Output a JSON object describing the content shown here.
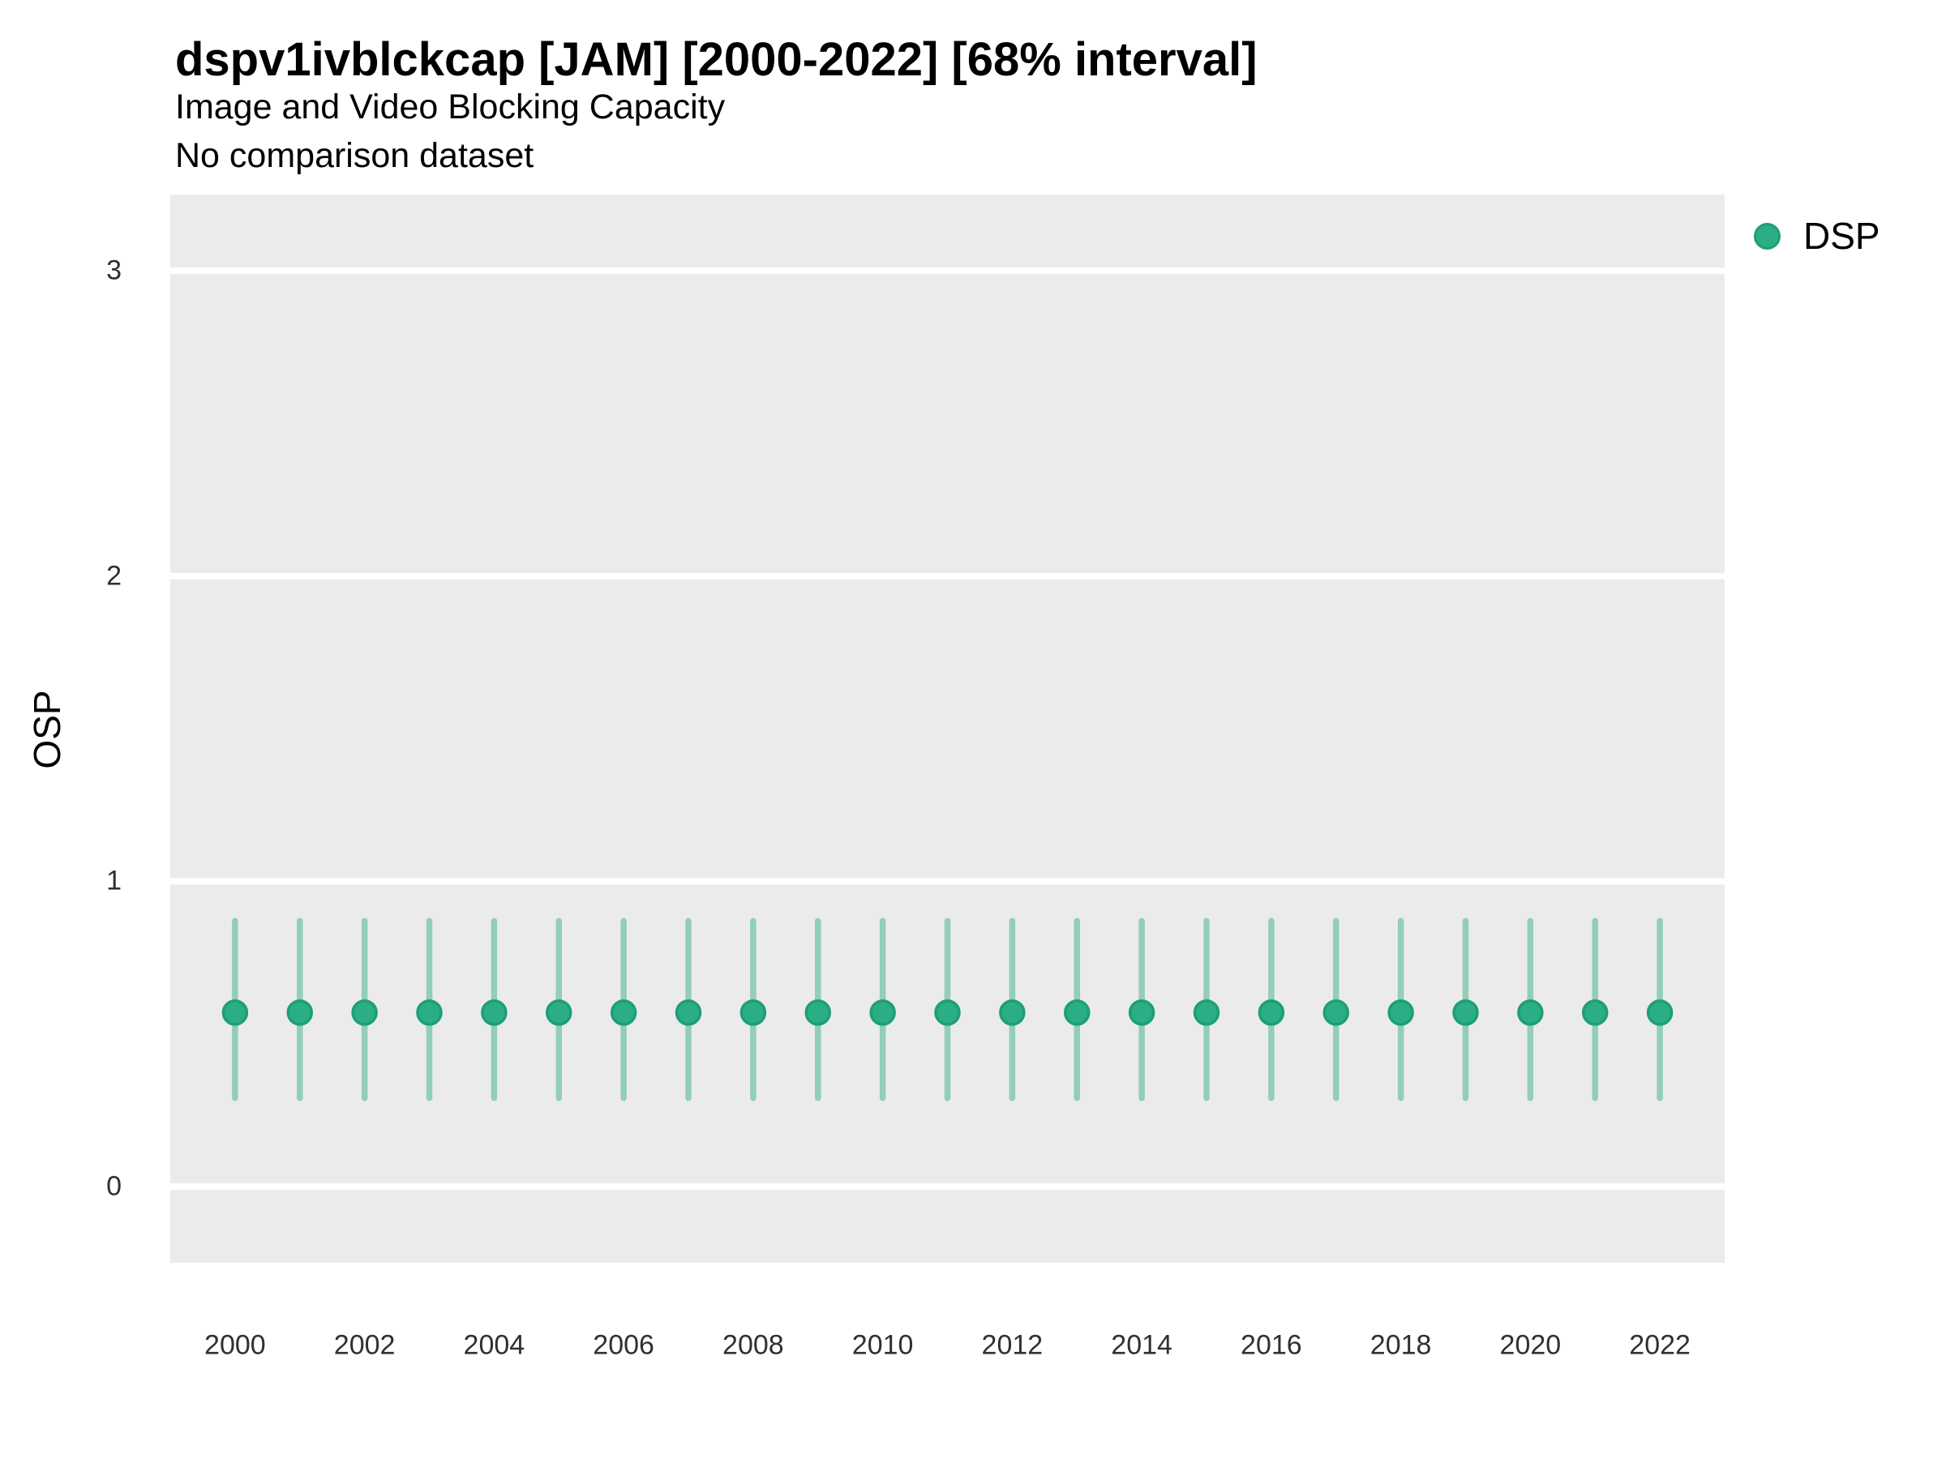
{
  "chart_data": {
    "type": "scatter",
    "mark": "pointrange",
    "title": "dspv1ivblckcap [JAM] [2000-2022] [68% interval]",
    "subtitle": "Image and Video Blocking Capacity",
    "note": "No comparison dataset",
    "interval_level": "68%",
    "xlabel": "",
    "ylabel": "OSP",
    "legend": {
      "position": "right-top",
      "entries": [
        "DSP"
      ]
    },
    "x_ticks": [
      2000,
      2002,
      2004,
      2006,
      2008,
      2010,
      2012,
      2014,
      2016,
      2018,
      2020,
      2022
    ],
    "y_ticks": [
      0,
      1,
      2,
      3
    ],
    "xlim": [
      1999,
      2023
    ],
    "ylim": [
      -0.25,
      3.25
    ],
    "grid": "major-horizontal-white-on-gray",
    "series": [
      {
        "name": "DSP",
        "x": [
          2000,
          2001,
          2002,
          2003,
          2004,
          2005,
          2006,
          2007,
          2008,
          2009,
          2010,
          2011,
          2012,
          2013,
          2014,
          2015,
          2016,
          2017,
          2018,
          2019,
          2020,
          2021,
          2022
        ],
        "y": [
          0.57,
          0.57,
          0.57,
          0.57,
          0.57,
          0.57,
          0.57,
          0.57,
          0.57,
          0.57,
          0.57,
          0.57,
          0.57,
          0.57,
          0.57,
          0.57,
          0.57,
          0.57,
          0.57,
          0.57,
          0.57,
          0.57,
          0.57
        ],
        "y_lower": [
          0.29,
          0.29,
          0.29,
          0.29,
          0.29,
          0.29,
          0.29,
          0.29,
          0.29,
          0.29,
          0.29,
          0.29,
          0.29,
          0.29,
          0.29,
          0.29,
          0.29,
          0.29,
          0.29,
          0.29,
          0.29,
          0.29,
          0.29
        ],
        "y_upper": [
          0.87,
          0.87,
          0.87,
          0.87,
          0.87,
          0.87,
          0.87,
          0.87,
          0.87,
          0.87,
          0.87,
          0.87,
          0.87,
          0.87,
          0.87,
          0.87,
          0.87,
          0.87,
          0.87,
          0.87,
          0.87,
          0.87,
          0.87
        ]
      }
    ],
    "colors": {
      "point_fill": "#2bae85",
      "point_stroke": "#1d9f76",
      "interval_line": "#93ceb7",
      "panel_bg": "#ebebeb",
      "grid_line": "#ffffff",
      "title_text": "#000000",
      "axis_text": "#303030"
    }
  }
}
